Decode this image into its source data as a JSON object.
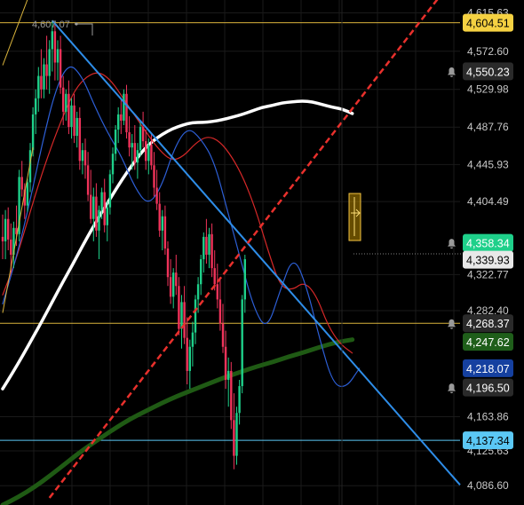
{
  "chart_data": {
    "type": "candlestick",
    "theme": "dark",
    "grid": true,
    "ylim": [
      4065,
      4630
    ],
    "x_count": 128,
    "axis": {
      "ticks": [
        "4,615.63",
        "4,572.60",
        "4,529.98",
        "4,487.76",
        "4,445.93",
        "4,404.49",
        "4,322.77",
        "4,282.40",
        "4,163.86",
        "4,125.63",
        "4,086.60"
      ]
    },
    "peak_label": "4,607.07",
    "price_labels": [
      {
        "text": "4,604.51",
        "value": 4604.51,
        "bg": "#f5d142",
        "fg": "#000000",
        "bell": false
      },
      {
        "text": "4,550.23",
        "value": 4550.23,
        "bg": "#2a2a2a",
        "fg": "#ffffff",
        "bell": true
      },
      {
        "text": "4,358.34",
        "value": 4358.34,
        "bg": "#1ed08a",
        "fg": "#ffffff",
        "bell": true
      },
      {
        "text": "4,339.93",
        "value": 4339.93,
        "bg": "#e8e8e8",
        "fg": "#000000",
        "bell": false
      },
      {
        "text": "4,268.37",
        "value": 4268.37,
        "bg": "#2a2a2a",
        "fg": "#ffffff",
        "bell": true
      },
      {
        "text": "4,247.62",
        "value": 4247.62,
        "bg": "#1f5e1a",
        "fg": "#ffffff",
        "bell": false
      },
      {
        "text": "4,218.07",
        "value": 4218.07,
        "bg": "#1540a0",
        "fg": "#ffffff",
        "bell": false
      },
      {
        "text": "4,196.50",
        "value": 4196.5,
        "bg": "#2a2a2a",
        "fg": "#ffffff",
        "bell": true
      },
      {
        "text": "4,137.34",
        "value": 4137.34,
        "bg": "#5bc8f5",
        "fg": "#000000",
        "bell": false
      }
    ],
    "horizontal_lines": [
      {
        "value": 4604.51,
        "color": "#d9b33c"
      },
      {
        "value": 4268.37,
        "color": "#d9b33c"
      },
      {
        "value": 4137.34,
        "color": "#5bc8f5"
      }
    ],
    "trendlines": [
      {
        "from": [
          0,
          4557
        ],
        "to": [
          13,
          4663
        ],
        "color": "#d9b33c",
        "style": "solid"
      },
      {
        "from": [
          0,
          4280
        ],
        "to": [
          11,
          4465
        ],
        "color": "#d9b33c",
        "style": "solid"
      },
      {
        "from": [
          18,
          4607
        ],
        "to": [
          89,
          4358
        ],
        "color": "#2e8de8",
        "style": "solid"
      },
      {
        "from": [
          17,
          4073
        ],
        "to": [
          89,
          4358
        ],
        "color": "#e8302c",
        "style": "dashed"
      }
    ],
    "candles": [
      {
        "o": 4365,
        "h": 4390,
        "l": 4340,
        "c": 4360
      },
      {
        "o": 4360,
        "h": 4395,
        "l": 4340,
        "c": 4385
      },
      {
        "o": 4385,
        "h": 4398,
        "l": 4350,
        "c": 4362
      },
      {
        "o": 4362,
        "h": 4380,
        "l": 4325,
        "c": 4345
      },
      {
        "o": 4345,
        "h": 4382,
        "l": 4330,
        "c": 4375
      },
      {
        "o": 4375,
        "h": 4400,
        "l": 4355,
        "c": 4368
      },
      {
        "o": 4368,
        "h": 4440,
        "l": 4360,
        "c": 4432
      },
      {
        "o": 4432,
        "h": 4450,
        "l": 4410,
        "c": 4418
      },
      {
        "o": 4418,
        "h": 4425,
        "l": 4385,
        "c": 4400
      },
      {
        "o": 4400,
        "h": 4430,
        "l": 4393,
        "c": 4426
      },
      {
        "o": 4426,
        "h": 4470,
        "l": 4415,
        "c": 4462
      },
      {
        "o": 4462,
        "h": 4510,
        "l": 4455,
        "c": 4502
      },
      {
        "o": 4502,
        "h": 4530,
        "l": 4480,
        "c": 4520
      },
      {
        "o": 4520,
        "h": 4555,
        "l": 4505,
        "c": 4545
      },
      {
        "o": 4545,
        "h": 4575,
        "l": 4520,
        "c": 4530
      },
      {
        "o": 4530,
        "h": 4565,
        "l": 4520,
        "c": 4558
      },
      {
        "o": 4558,
        "h": 4590,
        "l": 4530,
        "c": 4545
      },
      {
        "o": 4545,
        "h": 4585,
        "l": 4525,
        "c": 4575
      },
      {
        "o": 4575,
        "h": 4607,
        "l": 4550,
        "c": 4595
      },
      {
        "o": 4595,
        "h": 4605,
        "l": 4540,
        "c": 4560
      },
      {
        "o": 4560,
        "h": 4585,
        "l": 4540,
        "c": 4575
      },
      {
        "o": 4575,
        "h": 4590,
        "l": 4525,
        "c": 4532
      },
      {
        "o": 4532,
        "h": 4545,
        "l": 4490,
        "c": 4505
      },
      {
        "o": 4505,
        "h": 4530,
        "l": 4495,
        "c": 4525
      },
      {
        "o": 4525,
        "h": 4540,
        "l": 4480,
        "c": 4488
      },
      {
        "o": 4488,
        "h": 4520,
        "l": 4475,
        "c": 4512
      },
      {
        "o": 4512,
        "h": 4525,
        "l": 4470,
        "c": 4478
      },
      {
        "o": 4478,
        "h": 4505,
        "l": 4465,
        "c": 4498
      },
      {
        "o": 4498,
        "h": 4510,
        "l": 4440,
        "c": 4450
      },
      {
        "o": 4450,
        "h": 4470,
        "l": 4435,
        "c": 4462
      },
      {
        "o": 4462,
        "h": 4475,
        "l": 4430,
        "c": 4445
      },
      {
        "o": 4445,
        "h": 4460,
        "l": 4405,
        "c": 4412
      },
      {
        "o": 4412,
        "h": 4440,
        "l": 4380,
        "c": 4385
      },
      {
        "o": 4385,
        "h": 4420,
        "l": 4360,
        "c": 4410
      },
      {
        "o": 4410,
        "h": 4425,
        "l": 4365,
        "c": 4372
      },
      {
        "o": 4372,
        "h": 4400,
        "l": 4340,
        "c": 4395
      },
      {
        "o": 4395,
        "h": 4420,
        "l": 4385,
        "c": 4415
      },
      {
        "o": 4415,
        "h": 4430,
        "l": 4370,
        "c": 4378
      },
      {
        "o": 4378,
        "h": 4405,
        "l": 4360,
        "c": 4398
      },
      {
        "o": 4398,
        "h": 4440,
        "l": 4390,
        "c": 4435
      },
      {
        "o": 4435,
        "h": 4465,
        "l": 4425,
        "c": 4458
      },
      {
        "o": 4458,
        "h": 4490,
        "l": 4450,
        "c": 4485
      },
      {
        "o": 4485,
        "h": 4510,
        "l": 4470,
        "c": 4502
      },
      {
        "o": 4502,
        "h": 4520,
        "l": 4480,
        "c": 4495
      },
      {
        "o": 4495,
        "h": 4530,
        "l": 4490,
        "c": 4525
      },
      {
        "o": 4525,
        "h": 4535,
        "l": 4475,
        "c": 4482
      },
      {
        "o": 4482,
        "h": 4500,
        "l": 4455,
        "c": 4465
      },
      {
        "o": 4465,
        "h": 4480,
        "l": 4440,
        "c": 4470
      },
      {
        "o": 4470,
        "h": 4490,
        "l": 4440,
        "c": 4448
      },
      {
        "o": 4448,
        "h": 4470,
        "l": 4430,
        "c": 4462
      },
      {
        "o": 4462,
        "h": 4495,
        "l": 4455,
        "c": 4488
      },
      {
        "o": 4488,
        "h": 4505,
        "l": 4465,
        "c": 4472
      },
      {
        "o": 4472,
        "h": 4485,
        "l": 4440,
        "c": 4450
      },
      {
        "o": 4450,
        "h": 4475,
        "l": 4435,
        "c": 4468
      },
      {
        "o": 4468,
        "h": 4480,
        "l": 4440,
        "c": 4445
      },
      {
        "o": 4445,
        "h": 4460,
        "l": 4410,
        "c": 4420
      },
      {
        "o": 4420,
        "h": 4440,
        "l": 4395,
        "c": 4402
      },
      {
        "o": 4402,
        "h": 4415,
        "l": 4365,
        "c": 4372
      },
      {
        "o": 4372,
        "h": 4395,
        "l": 4350,
        "c": 4388
      },
      {
        "o": 4388,
        "h": 4400,
        "l": 4345,
        "c": 4352
      },
      {
        "o": 4352,
        "h": 4360,
        "l": 4310,
        "c": 4320
      },
      {
        "o": 4320,
        "h": 4340,
        "l": 4290,
        "c": 4298
      },
      {
        "o": 4298,
        "h": 4330,
        "l": 4285,
        "c": 4325
      },
      {
        "o": 4325,
        "h": 4345,
        "l": 4300,
        "c": 4310
      },
      {
        "o": 4310,
        "h": 4320,
        "l": 4255,
        "c": 4262
      },
      {
        "o": 4262,
        "h": 4300,
        "l": 4240,
        "c": 4292
      },
      {
        "o": 4292,
        "h": 4310,
        "l": 4245,
        "c": 4252
      },
      {
        "o": 4252,
        "h": 4275,
        "l": 4200,
        "c": 4215
      },
      {
        "o": 4215,
        "h": 4250,
        "l": 4195,
        "c": 4242
      },
      {
        "o": 4242,
        "h": 4270,
        "l": 4220,
        "c": 4258
      },
      {
        "o": 4258,
        "h": 4300,
        "l": 4245,
        "c": 4295
      },
      {
        "o": 4295,
        "h": 4320,
        "l": 4280,
        "c": 4312
      },
      {
        "o": 4312,
        "h": 4345,
        "l": 4300,
        "c": 4340
      },
      {
        "o": 4340,
        "h": 4370,
        "l": 4325,
        "c": 4365
      },
      {
        "o": 4365,
        "h": 4385,
        "l": 4335,
        "c": 4345
      },
      {
        "o": 4345,
        "h": 4375,
        "l": 4330,
        "c": 4368
      },
      {
        "o": 4368,
        "h": 4380,
        "l": 4320,
        "c": 4330
      },
      {
        "o": 4330,
        "h": 4350,
        "l": 4305,
        "c": 4312
      },
      {
        "o": 4312,
        "h": 4335,
        "l": 4285,
        "c": 4295
      },
      {
        "o": 4295,
        "h": 4320,
        "l": 4260,
        "c": 4268
      },
      {
        "o": 4268,
        "h": 4290,
        "l": 4235,
        "c": 4242
      },
      {
        "o": 4242,
        "h": 4260,
        "l": 4195,
        "c": 4205
      },
      {
        "o": 4205,
        "h": 4230,
        "l": 4175,
        "c": 4215
      },
      {
        "o": 4215,
        "h": 4225,
        "l": 4150,
        "c": 4160
      },
      {
        "o": 4160,
        "h": 4190,
        "l": 4105,
        "c": 4120
      },
      {
        "o": 4120,
        "h": 4175,
        "l": 4110,
        "c": 4168
      },
      {
        "o": 4168,
        "h": 4205,
        "l": 4155,
        "c": 4198
      },
      {
        "o": 4198,
        "h": 4300,
        "l": 4190,
        "c": 4295
      },
      {
        "o": 4295,
        "h": 4345,
        "l": 4280,
        "c": 4340
      }
    ],
    "moving_averages": [
      {
        "color": "#ffffff",
        "width": 3.5,
        "values": [
          4195,
          4213,
          4232,
          4252,
          4272,
          4293,
          4314,
          4334,
          4355,
          4375,
          4394,
          4412,
          4430,
          4446,
          4461,
          4472,
          4480,
          4486,
          4490,
          4493,
          4493,
          4494,
          4496,
          4499,
          4502,
          4506,
          4510,
          4512,
          4515,
          4516,
          4517,
          4516,
          4513,
          4510,
          4508,
          4503
        ]
      },
      {
        "color": "#1f5a14",
        "width": 5,
        "values": [
          4065,
          4074,
          4085,
          4098,
          4112,
          4126,
          4138,
          4150,
          4161,
          4170,
          4179,
          4187,
          4194,
          4201,
          4208,
          4214,
          4220,
          4225,
          4231,
          4236,
          4242,
          4247,
          4250
        ]
      },
      {
        "color": "#d62828",
        "width": 1.2,
        "values": [
          4300,
          4335,
          4380,
          4425,
          4465,
          4500,
          4530,
          4545,
          4550,
          4540,
          4520,
          4500,
          4480,
          4462,
          4450,
          4455,
          4470,
          4478,
          4472,
          4455,
          4430,
          4395,
          4350,
          4310,
          4305,
          4315,
          4300,
          4265,
          4245,
          4235
        ]
      },
      {
        "color": "#2d5fd6",
        "width": 1.2,
        "values": [
          4290,
          4340,
          4400,
          4470,
          4530,
          4560,
          4545,
          4510,
          4480,
          4455,
          4420,
          4400,
          4420,
          4465,
          4488,
          4475,
          4450,
          4395,
          4340,
          4285,
          4260,
          4305,
          4345,
          4310,
          4250,
          4200,
          4196,
          4218
        ]
      }
    ]
  }
}
